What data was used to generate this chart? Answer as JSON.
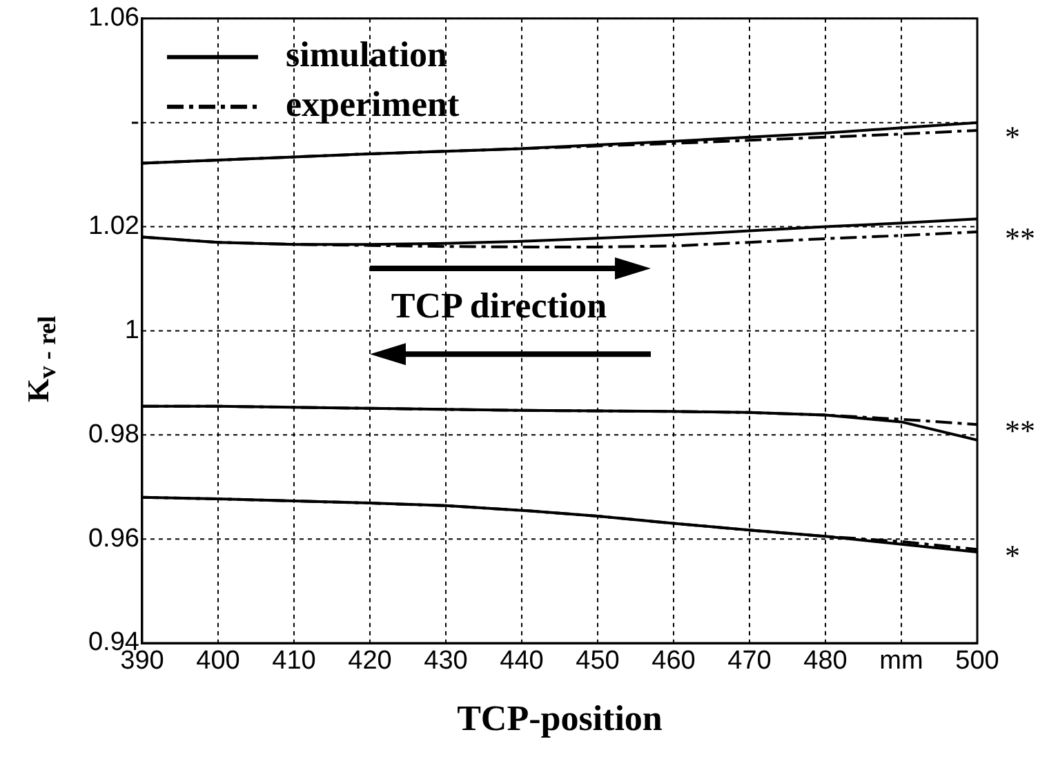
{
  "chart_data": {
    "type": "line",
    "xlabel": "TCP-position",
    "ylabel": "K$_{v - rel}$",
    "xlim": [
      390,
      500
    ],
    "xticks": [
      390,
      400,
      410,
      420,
      430,
      440,
      450,
      460,
      470,
      480,
      {
        "value": 490,
        "label": "mm"
      },
      500
    ],
    "ylim": [
      0.94,
      1.06
    ],
    "yticks": [
      0.94,
      0.96,
      0.98,
      1,
      1.02,
      {
        "value": 1.04,
        "label": "-"
      },
      1.06
    ],
    "x": [
      390,
      400,
      410,
      420,
      430,
      440,
      450,
      460,
      470,
      480,
      490,
      500
    ],
    "series": [
      {
        "name": "simulation",
        "color": "#000000",
        "line_style": "solid",
        "values": [
          1.0322,
          1.0328,
          1.0334,
          1.034,
          1.0345,
          1.035,
          1.0357,
          1.0364,
          1.0372,
          1.038,
          1.039,
          1.04
        ]
      },
      {
        "name": "experiment",
        "color": "#000000",
        "line_style": "dashed",
        "values": [
          1.0322,
          1.0328,
          1.0334,
          1.034,
          1.0345,
          1.035,
          1.0355,
          1.036,
          1.0366,
          1.0372,
          1.0378,
          1.0385
        ]
      },
      {
        "color": "#000000",
        "line_style": "solid",
        "values": [
          1.018,
          1.017,
          1.0166,
          1.0166,
          1.0168,
          1.0172,
          1.0178,
          1.0184,
          1.0192,
          1.02,
          1.0207,
          1.0215
        ]
      },
      {
        "color": "#000000",
        "line_style": "dashed",
        "values": [
          1.018,
          1.017,
          1.0166,
          1.0164,
          1.0162,
          1.0161,
          1.0161,
          1.0163,
          1.017,
          1.0177,
          1.0183,
          1.019
        ]
      },
      {
        "color": "#000000",
        "line_style": "solid",
        "values": [
          0.9855,
          0.9855,
          0.9853,
          0.9851,
          0.9849,
          0.9847,
          0.9846,
          0.9845,
          0.9843,
          0.9838,
          0.9825,
          0.979
        ]
      },
      {
        "color": "#000000",
        "line_style": "dashed",
        "values": [
          0.9855,
          0.9855,
          0.9853,
          0.9851,
          0.9849,
          0.9847,
          0.9846,
          0.9845,
          0.9843,
          0.9838,
          0.983,
          0.982
        ]
      },
      {
        "color": "#000000",
        "line_style": "solid",
        "values": [
          0.968,
          0.9677,
          0.9673,
          0.9669,
          0.9664,
          0.9655,
          0.9644,
          0.963,
          0.9617,
          0.9605,
          0.959,
          0.9575
        ]
      },
      {
        "color": "#000000",
        "line_style": "dashed",
        "values": [
          0.968,
          0.9677,
          0.9673,
          0.9669,
          0.9664,
          0.9655,
          0.9644,
          0.963,
          0.9617,
          0.9605,
          0.9595,
          0.958
        ]
      }
    ],
    "grid": true,
    "legend": "top left",
    "marker": "none",
    "annotations": [
      "*",
      "**",
      "**",
      "*",
      "TCP direction"
    ]
  }
}
